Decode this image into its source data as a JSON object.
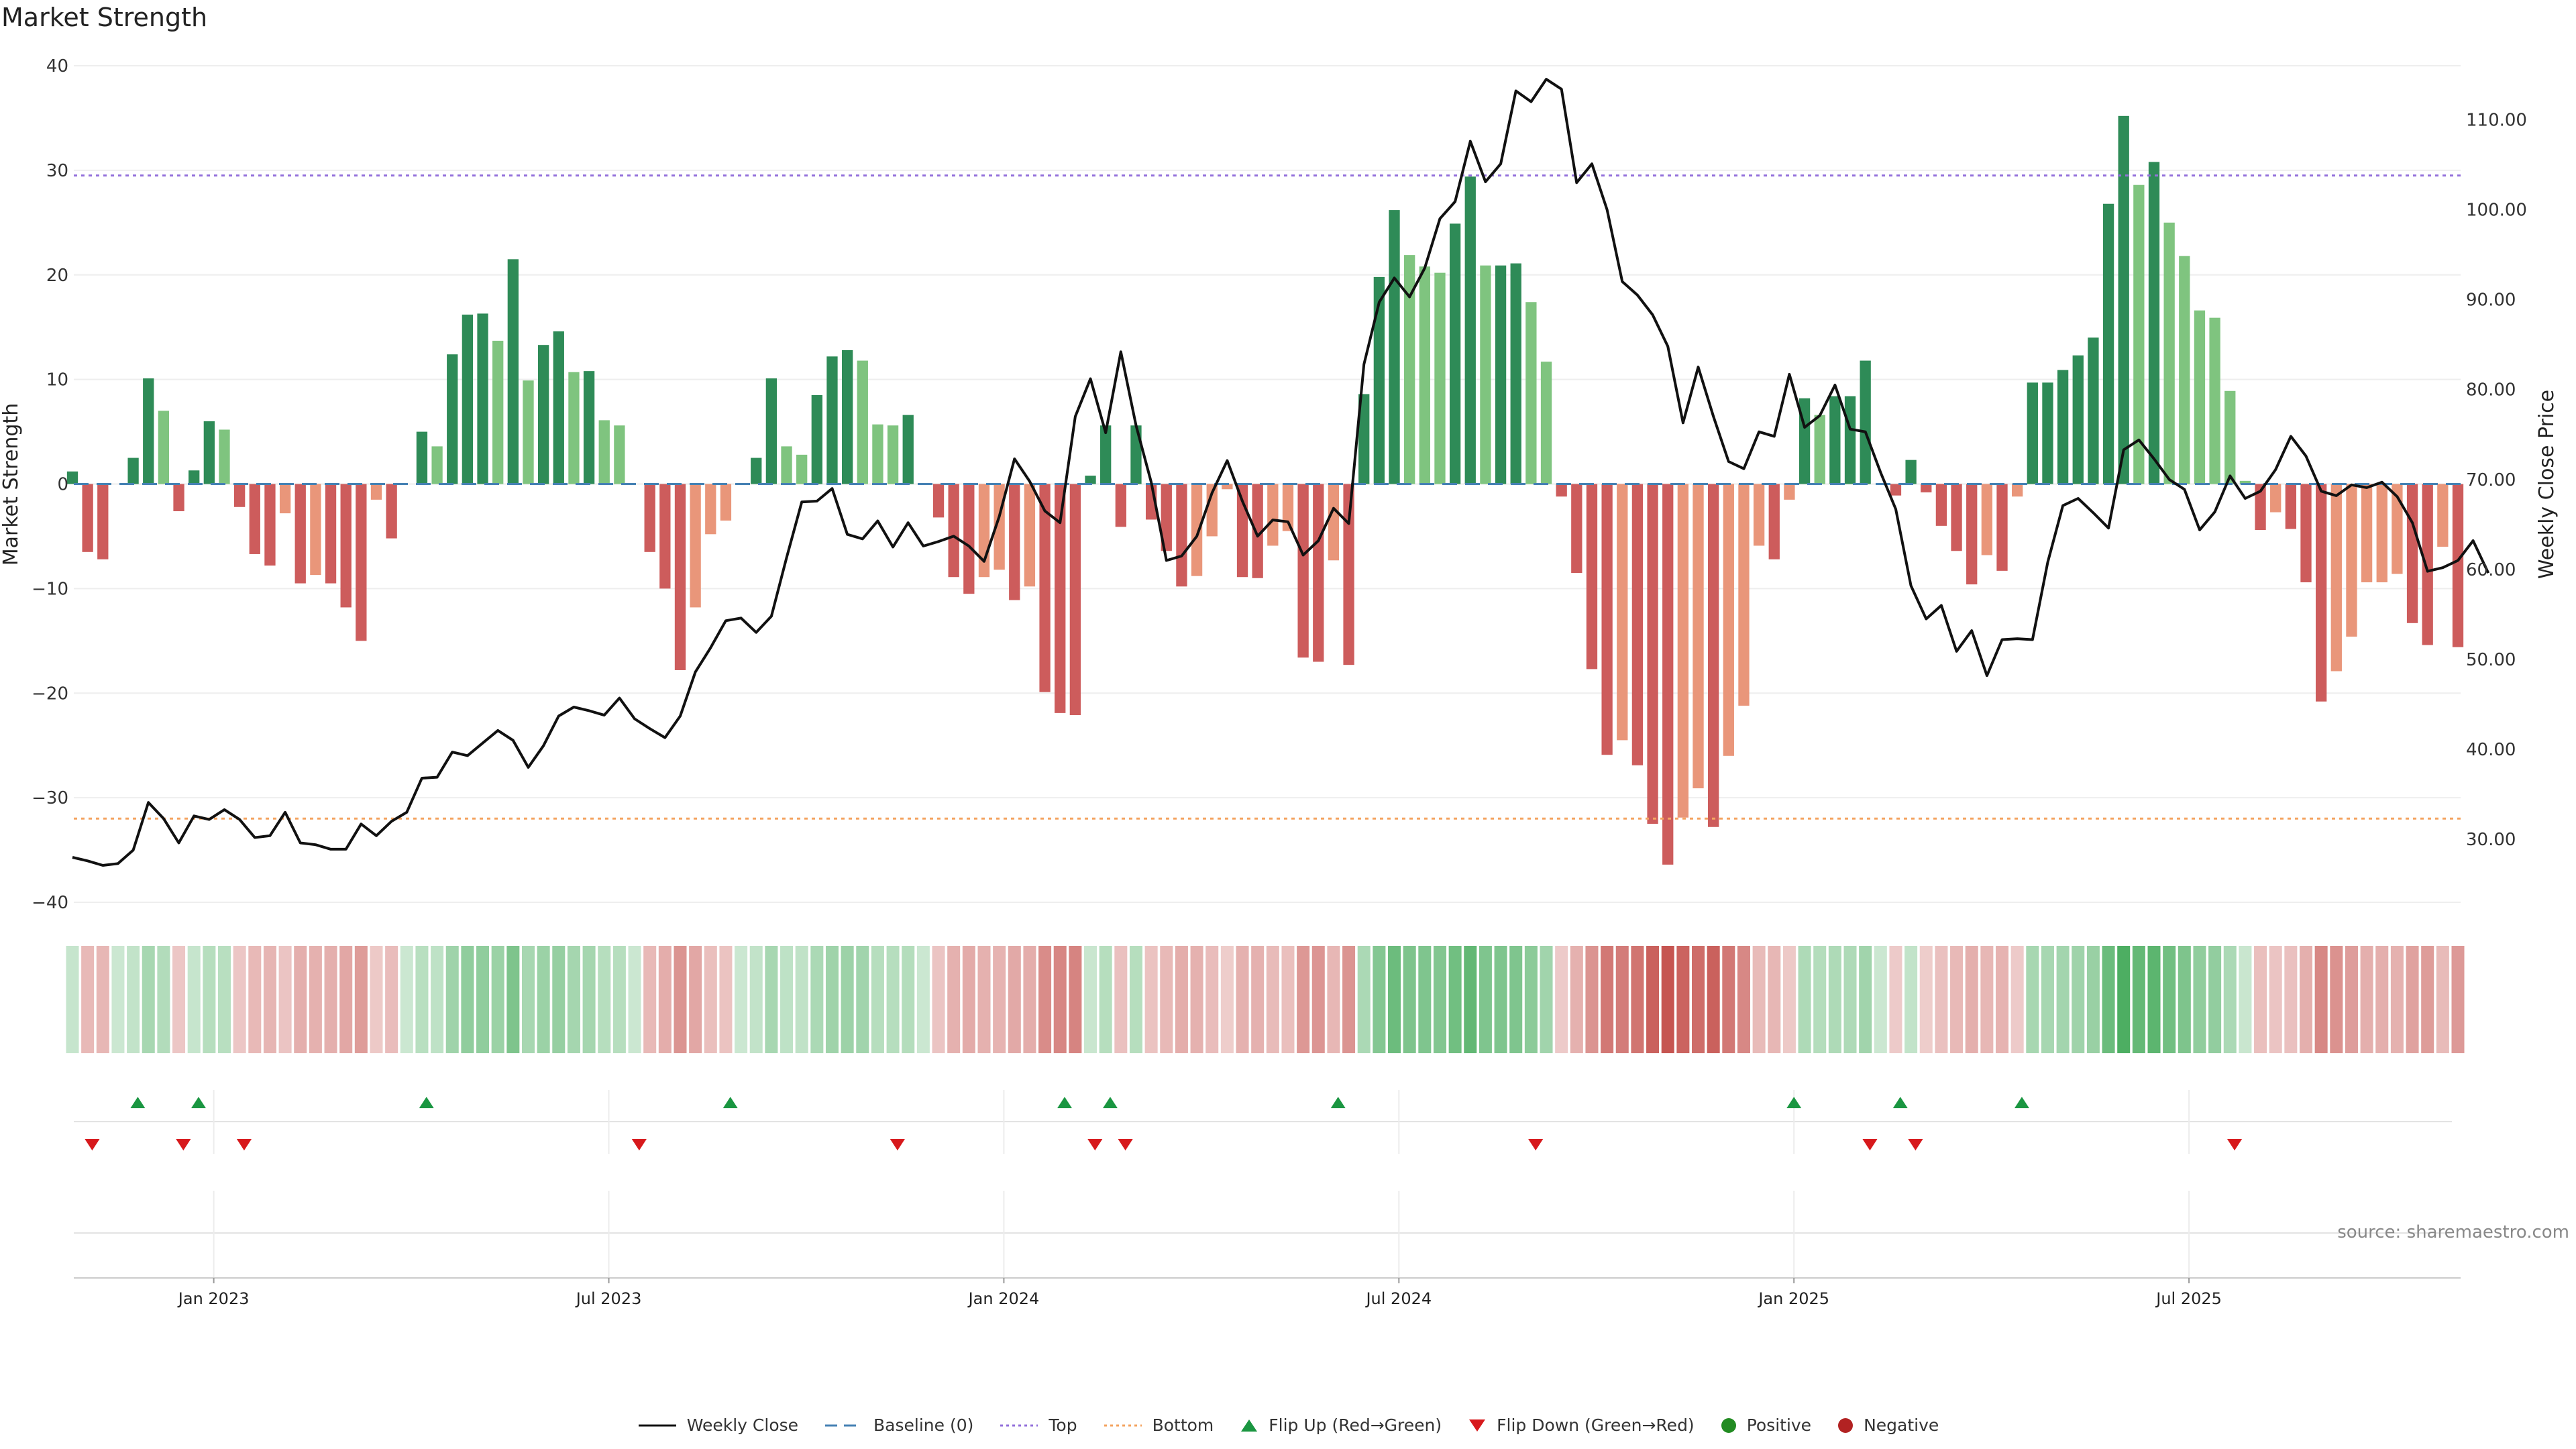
{
  "title": "Market Strength",
  "source": "source: sharemaestro.com",
  "colors": {
    "pos_strong": "#2e8b57",
    "pos_light": "#7fc47f",
    "neg_strong": "#cd5c5c",
    "neg_light": "#e9967a",
    "price_line": "#111111",
    "top_line": "#9370db",
    "bottom_line": "#f4a460",
    "baseline": "#4682b4",
    "flip_up": "#1a9641",
    "flip_down": "#d7191c",
    "positive_dot": "#228b22",
    "negative_dot": "#b22222"
  },
  "legend": {
    "weekly_close": "Weekly Close",
    "baseline": "Baseline (0)",
    "top": "Top",
    "bottom": "Bottom",
    "flip_up": "Flip Up (Red→Green)",
    "flip_down": "Flip Down (Green→Red)",
    "positive": "Positive",
    "negative": "Negative"
  },
  "chart_data": {
    "type": "bar",
    "title": "Market Strength",
    "ylabel": "Market Strength",
    "y2label": "Weekly Close Price",
    "ylim": [
      -40,
      40
    ],
    "y2lim": [
      23,
      116
    ],
    "yticks": [
      -40,
      -30,
      -20,
      -10,
      0,
      10,
      20,
      30,
      40
    ],
    "y2ticks": [
      "30.00",
      "40.00",
      "50.00",
      "60.00",
      "70.00",
      "80.00",
      "90.00",
      "100.00",
      "110.00"
    ],
    "top_level": 29.5,
    "bottom_level": -32,
    "weeks": 158,
    "start_index": -9.3,
    "end_index": 148.7,
    "x_tick_labels": [
      "Jan 2023",
      "Jul 2023",
      "Jan 2024",
      "Jul 2024",
      "Jan 2025",
      "Jul 2025"
    ],
    "x_tick_indices": [
      0,
      26,
      52,
      78,
      104,
      130
    ],
    "strength": [
      1.2,
      -6.5,
      -7.2,
      0,
      2.5,
      10.1,
      7.0,
      -2.6,
      1.3,
      6.0,
      5.2,
      -2.2,
      -6.7,
      -7.8,
      -2.8,
      -9.5,
      -8.7,
      -9.5,
      -11.8,
      -15.0,
      -1.5,
      -5.2,
      0,
      5.0,
      3.6,
      12.4,
      16.2,
      16.3,
      13.7,
      21.5,
      9.9,
      13.3,
      14.6,
      10.7,
      10.8,
      6.1,
      5.6,
      0,
      -6.5,
      -10.0,
      -17.8,
      -11.8,
      -4.8,
      -3.5,
      0,
      2.5,
      10.1,
      3.6,
      2.8,
      8.5,
      12.2,
      12.8,
      11.8,
      5.7,
      5.6,
      6.6,
      0,
      -3.2,
      -8.9,
      -10.5,
      -8.9,
      -8.2,
      -11.1,
      -9.8,
      -19.9,
      -21.9,
      -22.1,
      0.8,
      5.6,
      -4.1,
      5.6,
      -3.4,
      -6.4,
      -9.8,
      -8.8,
      -5.0,
      -0.5,
      -8.9,
      -9.0,
      -5.9,
      -4.5,
      -16.6,
      -17.0,
      -7.3,
      -17.3,
      8.6,
      19.8,
      26.2,
      21.9,
      20.8,
      20.2,
      24.9,
      29.4,
      20.9,
      20.9,
      21.1,
      17.4,
      11.7,
      -1.2,
      -8.5,
      -17.7,
      -25.9,
      -24.5,
      -26.9,
      -32.5,
      -36.4,
      -31.9,
      -29.1,
      -32.8,
      -26.0,
      -21.2,
      -5.9,
      -7.2,
      -1.5,
      8.2,
      6.6,
      8.4,
      8.4,
      11.8,
      0,
      -1.1,
      2.3,
      -0.8,
      -4.0,
      -6.4,
      -9.6,
      -6.8,
      -8.3,
      -1.2,
      9.7,
      9.7,
      10.9,
      12.3,
      14.0,
      26.8,
      35.2,
      28.6,
      30.8,
      25.0,
      21.8,
      16.6,
      15.9,
      8.9,
      0.3,
      -4.4,
      -2.7,
      -4.3,
      -9.4,
      -20.8,
      -17.9,
      -14.6,
      -9.4,
      -9.4,
      -8.6,
      -13.3,
      -15.4,
      -6.0,
      -15.6
    ],
    "close": [
      28.0,
      27.6,
      27.1,
      27.3,
      28.8,
      34.1,
      32.3,
      29.6,
      32.6,
      32.2,
      33.3,
      32.2,
      30.2,
      30.4,
      33.0,
      29.6,
      29.4,
      28.9,
      28.9,
      31.7,
      30.4,
      32.0,
      33.0,
      36.8,
      36.9,
      39.7,
      39.3,
      40.7,
      42.1,
      41.0,
      38.0,
      40.4,
      43.7,
      44.7,
      44.3,
      43.8,
      45.7,
      43.4,
      42.3,
      41.3,
      43.7,
      48.6,
      51.3,
      54.3,
      54.6,
      53.0,
      54.8,
      61.3,
      67.5,
      67.6,
      69.0,
      63.9,
      63.4,
      65.4,
      62.5,
      65.2,
      62.6,
      63.1,
      63.7,
      62.6,
      60.9,
      65.9,
      72.3,
      69.8,
      66.5,
      65.2,
      77.0,
      81.2,
      75.2,
      84.2,
      76.0,
      69.7,
      61.0,
      61.5,
      63.7,
      68.5,
      72.1,
      67.6,
      63.7,
      65.5,
      65.3,
      61.6,
      63.2,
      66.8,
      65.1,
      82.8,
      89.7,
      92.4,
      90.3,
      93.5,
      99.0,
      100.9,
      107.6,
      103.1,
      105.1,
      113.2,
      112.0,
      114.5,
      113.4,
      103.0,
      105.1,
      100.0,
      92.0,
      90.5,
      88.3,
      84.8,
      76.3,
      82.5,
      77.0,
      72.0,
      71.2,
      75.3,
      74.8,
      81.7,
      75.8,
      77.1,
      80.5,
      75.6,
      75.3,
      70.8,
      66.7,
      58.2,
      54.5,
      56.0,
      50.9,
      53.2,
      48.2,
      52.2,
      52.3,
      52.2,
      60.8,
      67.1,
      67.9,
      66.3,
      64.6,
      73.3,
      74.4,
      72.3,
      70.0,
      68.9,
      64.4,
      66.4,
      70.4,
      67.9,
      68.7,
      71.1,
      74.8,
      72.6,
      68.7,
      68.2,
      69.4,
      69.1,
      69.7,
      68.1,
      65.2,
      59.8,
      60.2,
      61.0,
      63.2,
      59.6
    ],
    "flip_up_indices": [
      -5,
      -1,
      14,
      34,
      56,
      59,
      74,
      104,
      111,
      119
    ],
    "flip_down_indices": [
      -8,
      -2,
      2,
      28,
      45,
      58,
      60,
      87,
      109,
      112,
      133
    ]
  }
}
